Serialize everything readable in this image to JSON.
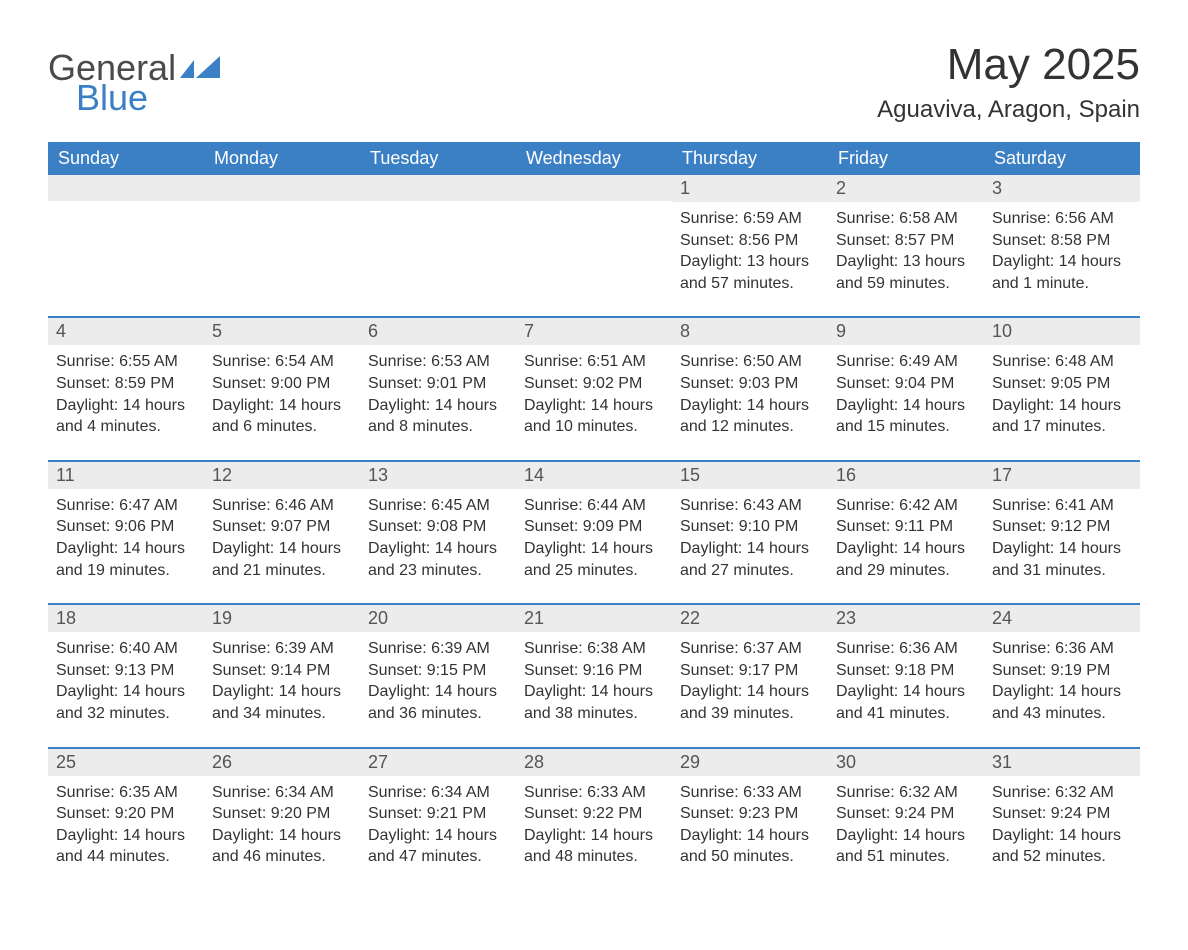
{
  "brand": {
    "general": "General",
    "blue": "Blue"
  },
  "title": "May 2025",
  "location": "Aguaviva, Aragon, Spain",
  "colors": {
    "header_bg": "#3b7fc4",
    "header_text": "#ffffff",
    "daynum_bg": "#ececec",
    "row_divider": "#3b7fc4",
    "body_text": "#333333",
    "logo_gray": "#4a4a4a",
    "logo_blue": "#3b7fc4"
  },
  "weekdays": [
    "Sunday",
    "Monday",
    "Tuesday",
    "Wednesday",
    "Thursday",
    "Friday",
    "Saturday"
  ],
  "weeks": [
    [
      {
        "day": "",
        "sunrise": "",
        "sunset": "",
        "daylight": ""
      },
      {
        "day": "",
        "sunrise": "",
        "sunset": "",
        "daylight": ""
      },
      {
        "day": "",
        "sunrise": "",
        "sunset": "",
        "daylight": ""
      },
      {
        "day": "",
        "sunrise": "",
        "sunset": "",
        "daylight": ""
      },
      {
        "day": "1",
        "sunrise": "Sunrise: 6:59 AM",
        "sunset": "Sunset: 8:56 PM",
        "daylight": "Daylight: 13 hours and 57 minutes."
      },
      {
        "day": "2",
        "sunrise": "Sunrise: 6:58 AM",
        "sunset": "Sunset: 8:57 PM",
        "daylight": "Daylight: 13 hours and 59 minutes."
      },
      {
        "day": "3",
        "sunrise": "Sunrise: 6:56 AM",
        "sunset": "Sunset: 8:58 PM",
        "daylight": "Daylight: 14 hours and 1 minute."
      }
    ],
    [
      {
        "day": "4",
        "sunrise": "Sunrise: 6:55 AM",
        "sunset": "Sunset: 8:59 PM",
        "daylight": "Daylight: 14 hours and 4 minutes."
      },
      {
        "day": "5",
        "sunrise": "Sunrise: 6:54 AM",
        "sunset": "Sunset: 9:00 PM",
        "daylight": "Daylight: 14 hours and 6 minutes."
      },
      {
        "day": "6",
        "sunrise": "Sunrise: 6:53 AM",
        "sunset": "Sunset: 9:01 PM",
        "daylight": "Daylight: 14 hours and 8 minutes."
      },
      {
        "day": "7",
        "sunrise": "Sunrise: 6:51 AM",
        "sunset": "Sunset: 9:02 PM",
        "daylight": "Daylight: 14 hours and 10 minutes."
      },
      {
        "day": "8",
        "sunrise": "Sunrise: 6:50 AM",
        "sunset": "Sunset: 9:03 PM",
        "daylight": "Daylight: 14 hours and 12 minutes."
      },
      {
        "day": "9",
        "sunrise": "Sunrise: 6:49 AM",
        "sunset": "Sunset: 9:04 PM",
        "daylight": "Daylight: 14 hours and 15 minutes."
      },
      {
        "day": "10",
        "sunrise": "Sunrise: 6:48 AM",
        "sunset": "Sunset: 9:05 PM",
        "daylight": "Daylight: 14 hours and 17 minutes."
      }
    ],
    [
      {
        "day": "11",
        "sunrise": "Sunrise: 6:47 AM",
        "sunset": "Sunset: 9:06 PM",
        "daylight": "Daylight: 14 hours and 19 minutes."
      },
      {
        "day": "12",
        "sunrise": "Sunrise: 6:46 AM",
        "sunset": "Sunset: 9:07 PM",
        "daylight": "Daylight: 14 hours and 21 minutes."
      },
      {
        "day": "13",
        "sunrise": "Sunrise: 6:45 AM",
        "sunset": "Sunset: 9:08 PM",
        "daylight": "Daylight: 14 hours and 23 minutes."
      },
      {
        "day": "14",
        "sunrise": "Sunrise: 6:44 AM",
        "sunset": "Sunset: 9:09 PM",
        "daylight": "Daylight: 14 hours and 25 minutes."
      },
      {
        "day": "15",
        "sunrise": "Sunrise: 6:43 AM",
        "sunset": "Sunset: 9:10 PM",
        "daylight": "Daylight: 14 hours and 27 minutes."
      },
      {
        "day": "16",
        "sunrise": "Sunrise: 6:42 AM",
        "sunset": "Sunset: 9:11 PM",
        "daylight": "Daylight: 14 hours and 29 minutes."
      },
      {
        "day": "17",
        "sunrise": "Sunrise: 6:41 AM",
        "sunset": "Sunset: 9:12 PM",
        "daylight": "Daylight: 14 hours and 31 minutes."
      }
    ],
    [
      {
        "day": "18",
        "sunrise": "Sunrise: 6:40 AM",
        "sunset": "Sunset: 9:13 PM",
        "daylight": "Daylight: 14 hours and 32 minutes."
      },
      {
        "day": "19",
        "sunrise": "Sunrise: 6:39 AM",
        "sunset": "Sunset: 9:14 PM",
        "daylight": "Daylight: 14 hours and 34 minutes."
      },
      {
        "day": "20",
        "sunrise": "Sunrise: 6:39 AM",
        "sunset": "Sunset: 9:15 PM",
        "daylight": "Daylight: 14 hours and 36 minutes."
      },
      {
        "day": "21",
        "sunrise": "Sunrise: 6:38 AM",
        "sunset": "Sunset: 9:16 PM",
        "daylight": "Daylight: 14 hours and 38 minutes."
      },
      {
        "day": "22",
        "sunrise": "Sunrise: 6:37 AM",
        "sunset": "Sunset: 9:17 PM",
        "daylight": "Daylight: 14 hours and 39 minutes."
      },
      {
        "day": "23",
        "sunrise": "Sunrise: 6:36 AM",
        "sunset": "Sunset: 9:18 PM",
        "daylight": "Daylight: 14 hours and 41 minutes."
      },
      {
        "day": "24",
        "sunrise": "Sunrise: 6:36 AM",
        "sunset": "Sunset: 9:19 PM",
        "daylight": "Daylight: 14 hours and 43 minutes."
      }
    ],
    [
      {
        "day": "25",
        "sunrise": "Sunrise: 6:35 AM",
        "sunset": "Sunset: 9:20 PM",
        "daylight": "Daylight: 14 hours and 44 minutes."
      },
      {
        "day": "26",
        "sunrise": "Sunrise: 6:34 AM",
        "sunset": "Sunset: 9:20 PM",
        "daylight": "Daylight: 14 hours and 46 minutes."
      },
      {
        "day": "27",
        "sunrise": "Sunrise: 6:34 AM",
        "sunset": "Sunset: 9:21 PM",
        "daylight": "Daylight: 14 hours and 47 minutes."
      },
      {
        "day": "28",
        "sunrise": "Sunrise: 6:33 AM",
        "sunset": "Sunset: 9:22 PM",
        "daylight": "Daylight: 14 hours and 48 minutes."
      },
      {
        "day": "29",
        "sunrise": "Sunrise: 6:33 AM",
        "sunset": "Sunset: 9:23 PM",
        "daylight": "Daylight: 14 hours and 50 minutes."
      },
      {
        "day": "30",
        "sunrise": "Sunrise: 6:32 AM",
        "sunset": "Sunset: 9:24 PM",
        "daylight": "Daylight: 14 hours and 51 minutes."
      },
      {
        "day": "31",
        "sunrise": "Sunrise: 6:32 AM",
        "sunset": "Sunset: 9:24 PM",
        "daylight": "Daylight: 14 hours and 52 minutes."
      }
    ]
  ]
}
